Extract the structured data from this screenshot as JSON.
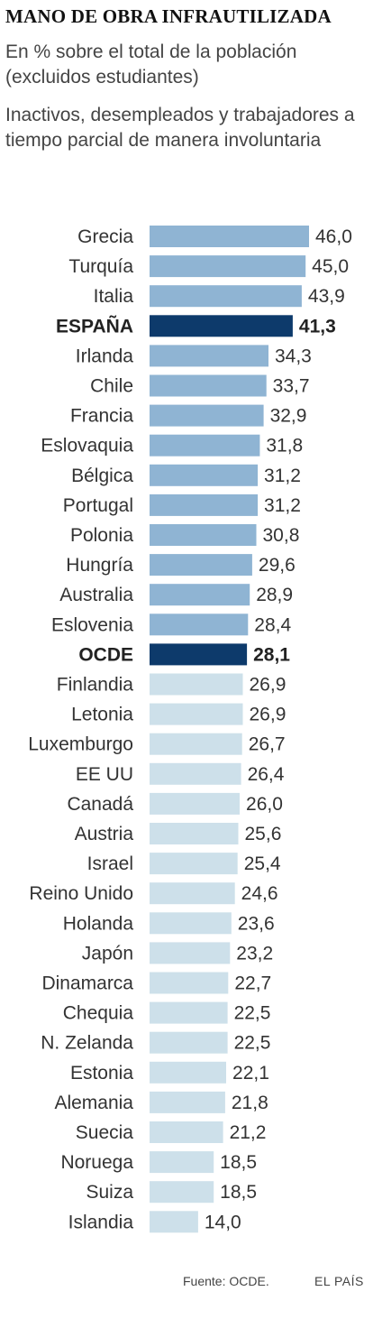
{
  "header": {
    "title": "MANO DE OBRA INFRAUTILIZADA",
    "subtitle": "En % sobre el total de la población (excluidos estudiantes)",
    "description": "Inactivos, desempleados y trabajadores a tiempo parcial de manera involuntaria"
  },
  "footer": {
    "source": "Fuente: OCDE.",
    "brand": "EL PAÍS"
  },
  "colors": {
    "above_oecd": "#8fb4d3",
    "highlight": "#0d3a6b",
    "below_oecd": "#cde0ea"
  },
  "chart_data": {
    "type": "bar",
    "orientation": "horizontal",
    "categories": [
      "Grecia",
      "Turquía",
      "Italia",
      "ESPAÑA",
      "Irlanda",
      "Chile",
      "Francia",
      "Eslovaquia",
      "Bélgica",
      "Portugal",
      "Polonia",
      "Hungría",
      "Australia",
      "Eslovenia",
      "OCDE",
      "Finlandia",
      "Letonia",
      "Luxemburgo",
      "EE UU",
      "Canadá",
      "Austria",
      "Israel",
      "Reino Unido",
      "Holanda",
      "Japón",
      "Dinamarca",
      "Chequia",
      "N. Zelanda",
      "Estonia",
      "Alemania",
      "Suecia",
      "Noruega",
      "Suiza",
      "Islandia"
    ],
    "values": [
      46.0,
      45.0,
      43.9,
      41.3,
      34.3,
      33.7,
      32.9,
      31.8,
      31.2,
      31.2,
      30.8,
      29.6,
      28.9,
      28.4,
      28.1,
      26.9,
      26.9,
      26.7,
      26.4,
      26.0,
      25.6,
      25.4,
      24.6,
      23.6,
      23.2,
      22.7,
      22.5,
      22.5,
      22.1,
      21.8,
      21.2,
      18.5,
      18.5,
      14.0
    ],
    "value_labels": [
      "46,0",
      "45,0",
      "43,9",
      "41,3",
      "34,3",
      "33,7",
      "32,9",
      "31,8",
      "31,2",
      "31,2",
      "30,8",
      "29,6",
      "28,9",
      "28,4",
      "28,1",
      "26,9",
      "26,9",
      "26,7",
      "26,4",
      "26,0",
      "25,6",
      "25,4",
      "24,6",
      "23,6",
      "23,2",
      "22,7",
      "22,5",
      "22,5",
      "22,1",
      "21,8",
      "21,2",
      "18,5",
      "18,5",
      "14,0"
    ],
    "highlighted": [
      "ESPAÑA",
      "OCDE"
    ],
    "xlim": [
      0,
      46.0
    ],
    "grid": false,
    "legend": "none"
  }
}
